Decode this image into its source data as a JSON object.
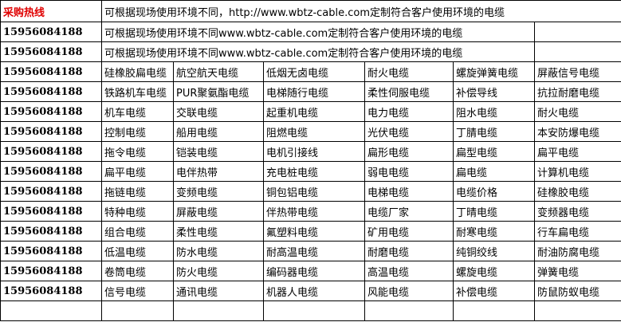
{
  "table": {
    "header": [
      "采购热线",
      "可根据现场使用环境不同，http://www.wbtz-cable.com定制符合客户使用环境的电缆"
    ],
    "notes": [
      [
        "15956084188",
        "可根据现场使用环境不同www.wbtz-cable.com定制符合客户使用环境的电缆"
      ],
      [
        "15956084188",
        "可根据现场使用环境不同www.wbtz-cable.com定制符合客户使用环境的电缆"
      ]
    ],
    "rows": [
      [
        "15956084188",
        "硅橡胶扁电缆",
        "航空航天电缆",
        "低烟无卤电缆",
        "耐火电缆",
        "螺旋弹簧电缆",
        "屏蔽信号电缆"
      ],
      [
        "15956084188",
        "铁路机车电缆",
        "PUR聚氨酯电缆",
        "电梯随行电缆",
        "柔性伺服电缆",
        "补偿导线",
        "抗拉耐磨电缆"
      ],
      [
        "15956084188",
        "机车电缆",
        "交联电缆",
        "起重机电缆",
        "电力电缆",
        "阻水电缆",
        "耐火电缆"
      ],
      [
        "15956084188",
        "控制电缆",
        "船用电缆",
        "阻燃电缆",
        "光伏电缆",
        "丁腈电缆",
        "本安防爆电缆"
      ],
      [
        "15956084188",
        "拖令电缆",
        "铠装电缆",
        "电机引接线",
        "扁形电缆",
        "扁型电缆",
        "扁平电缆"
      ],
      [
        "15956084188",
        "扁平电缆",
        "电伴热带",
        "充电桩电缆",
        "弱电电缆",
        "扁电缆",
        "计算机电缆"
      ],
      [
        "15956084188",
        "拖链电缆",
        "变频电缆",
        "铜包铝电缆",
        "电梯电缆",
        "电缆价格",
        "硅橡胶电缆"
      ],
      [
        "15956084188",
        "特种电缆",
        "屏蔽电缆",
        "伴热带电缆",
        "电缆厂家",
        "丁晴电缆",
        "变频器电缆"
      ],
      [
        "15956084188",
        "组合电缆",
        "柔性电缆",
        "氟塑料电缆",
        "矿用电缆",
        "耐寒电缆",
        "行车扁电缆"
      ],
      [
        "15956084188",
        "低温电缆",
        "防水电缆",
        "耐高温电缆",
        "耐磨电缆",
        "纯铜绞线",
        "耐油防腐电缆"
      ],
      [
        "15956084188",
        "卷筒电缆",
        "防火电缆",
        "编码器电缆",
        "高温电缆",
        "螺旋电缆",
        "弹簧电缆"
      ],
      [
        "15956084188",
        "信号电缆",
        "通讯电缆",
        "机器人电缆",
        "风能电缆",
        "补偿电缆",
        "防鼠防蚁电缆"
      ]
    ]
  }
}
